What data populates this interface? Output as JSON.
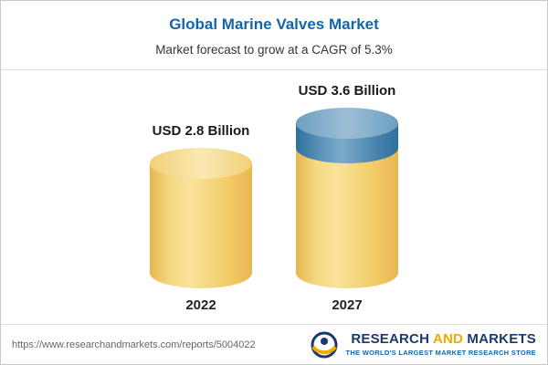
{
  "header": {
    "title": "Global Marine Valves Market",
    "subtitle": "Market forecast to grow at a CAGR of 5.3%"
  },
  "chart_data": {
    "type": "bar",
    "subtype": "3d-cylinder",
    "title": "Global Marine Valves Market",
    "subtitle": "Market forecast to grow at a CAGR of 5.3%",
    "categories": [
      "2022",
      "2027"
    ],
    "values": [
      2.8,
      3.6
    ],
    "value_labels": [
      "USD 2.8 Billion",
      "USD 3.6 Billion"
    ],
    "xlabel": "",
    "ylabel": "USD Billion",
    "ylim": [
      0,
      4
    ],
    "grid": false,
    "legend": "none",
    "bars": [
      {
        "category": "2022",
        "total": 2.8,
        "label": "USD 2.8 Billion",
        "segments": [
          {
            "value": 2.8,
            "color": "#F5CE6B"
          }
        ]
      },
      {
        "category": "2027",
        "total": 3.6,
        "label": "USD 3.6 Billion",
        "segments": [
          {
            "value": 2.8,
            "color": "#F5CE6B"
          },
          {
            "value": 0.8,
            "color": "#4481AC"
          }
        ]
      }
    ]
  },
  "footer": {
    "url": "https://www.researchandmarkets.com/reports/5004022",
    "logo": {
      "research": "RESEARCH",
      "and": "AND",
      "markets": "MARKETS",
      "tagline": "THE WORLD'S LARGEST MARKET RESEARCH STORE"
    }
  },
  "colors": {
    "title_blue": "#1366AD",
    "gold_body": "#F5CE6B",
    "gold_top": "#F8E2A0",
    "blue_body": "#4481AC",
    "blue_top": "#85AECA",
    "logo_navy": "#1B3A6B",
    "logo_gold": "#F0AB00",
    "tagline_blue": "#1366AD"
  }
}
